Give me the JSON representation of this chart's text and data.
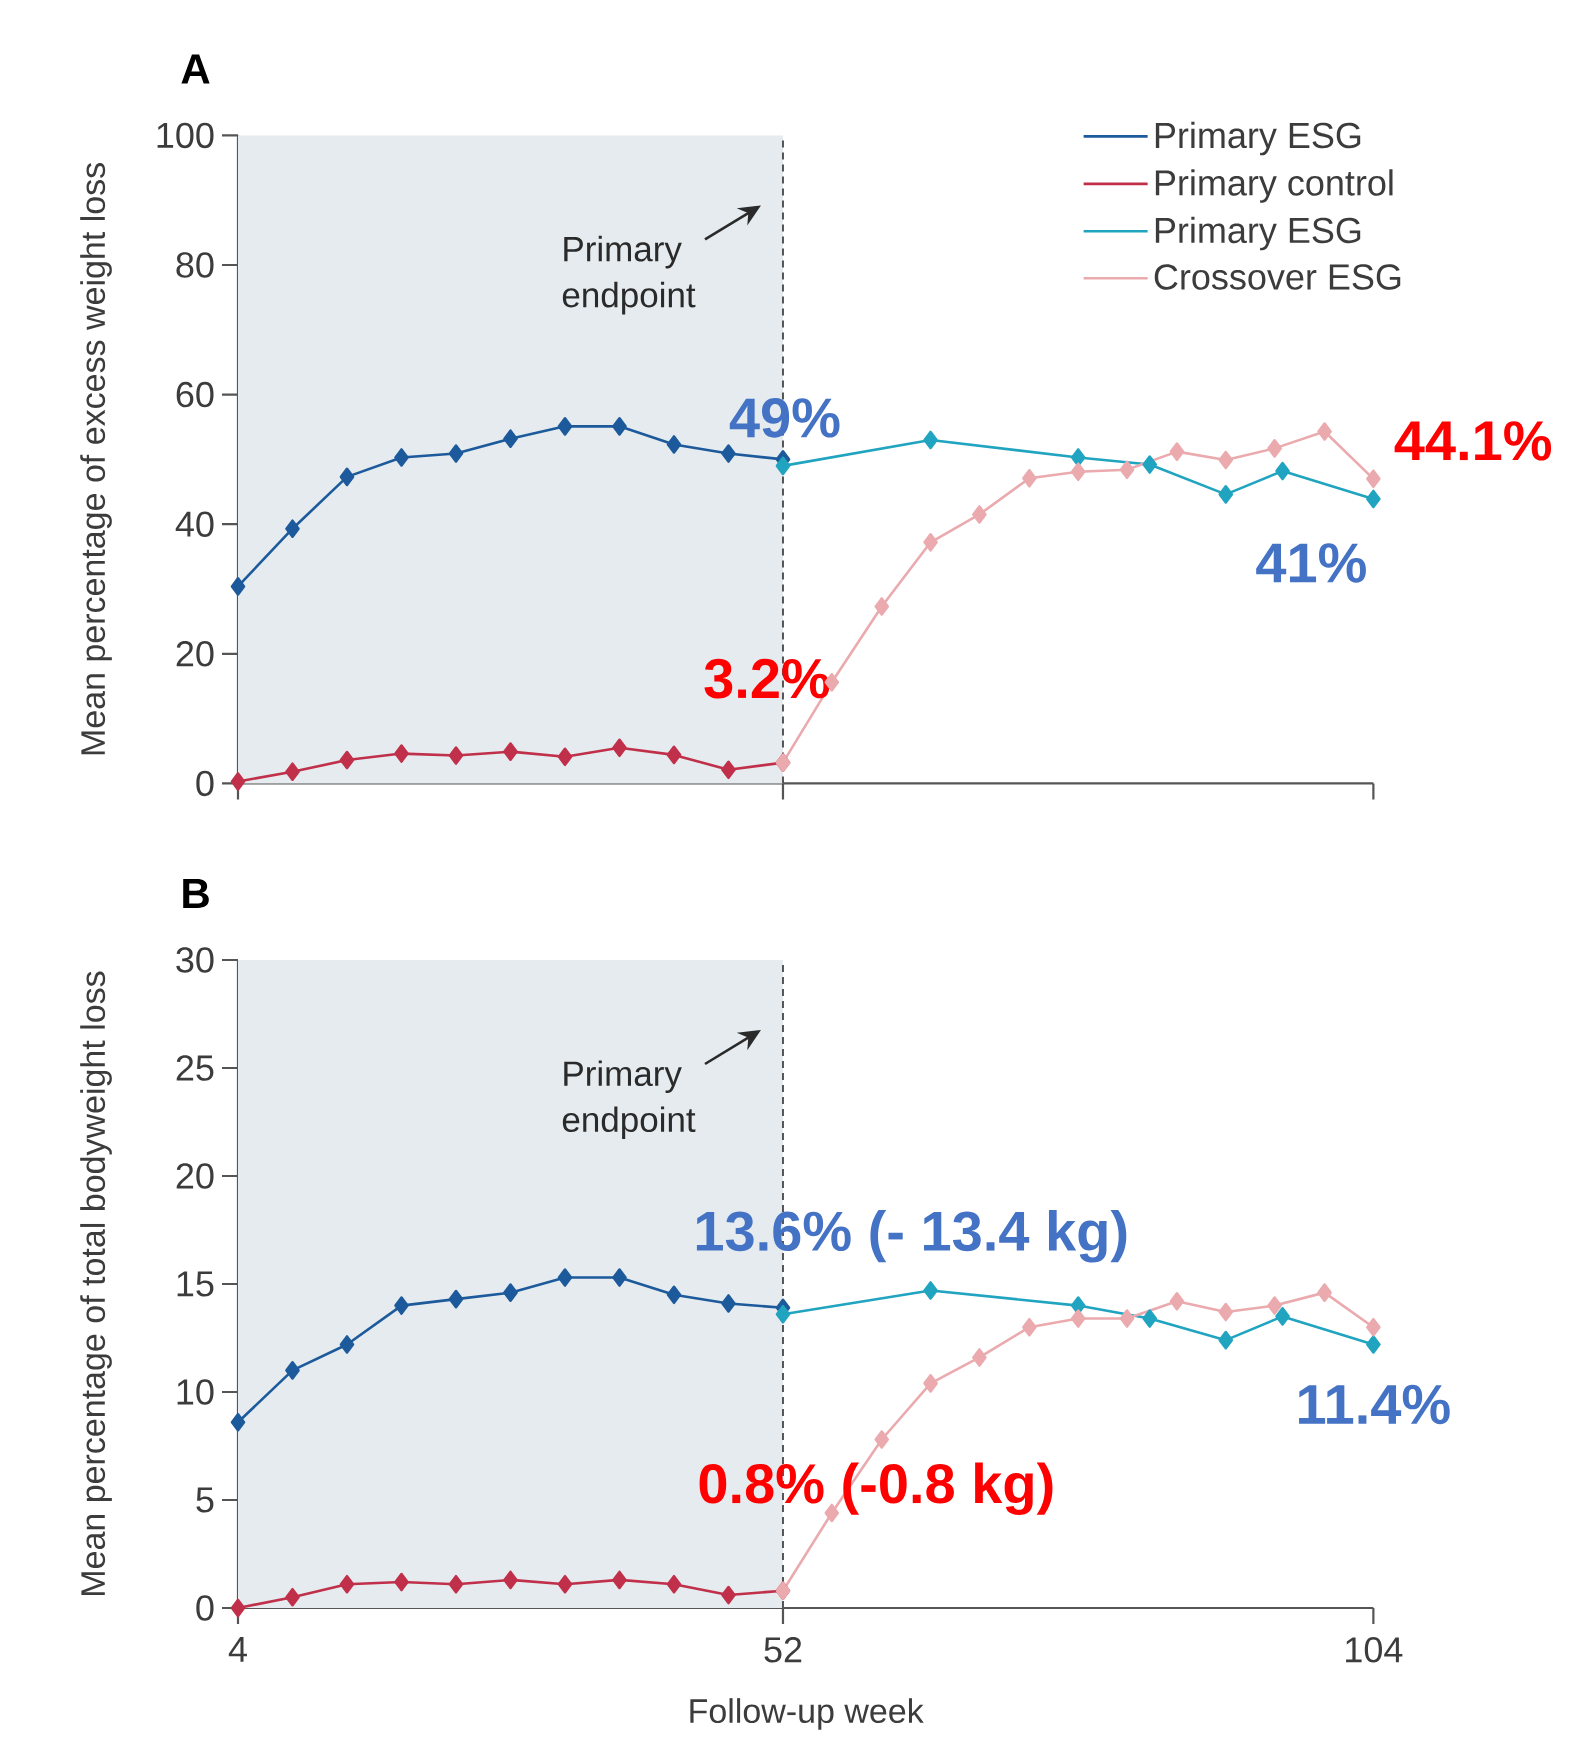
{
  "chart_data": [
    {
      "type": "line",
      "title": "A",
      "ylabel": "Mean percentage of excess weight loss",
      "xlim": [
        4,
        104
      ],
      "xticks": [
        4,
        52,
        104
      ],
      "ylim": [
        0,
        100
      ],
      "yticks": [
        0,
        20,
        40,
        60,
        80,
        100
      ],
      "tick_labels": "y",
      "marker": "diamond",
      "line_style": "solid",
      "legend": "top right",
      "bands": [
        {
          "axis": "x",
          "from": 4,
          "to": 52,
          "color": "#e5ebee"
        }
      ],
      "ref_lines": [
        {
          "axis": "x",
          "value": 52,
          "color": "#555555",
          "line_style": "dashed"
        }
      ],
      "annotations": [
        "Primary endpoint",
        "49%",
        "3.2%",
        "41%",
        "44.1%"
      ],
      "series": [
        {
          "name": "Primary ESG",
          "color": "#1c5a9c",
          "x": [
            4,
            8.8,
            13.6,
            18.4,
            23.2,
            28,
            32.8,
            37.6,
            42.4,
            47.2,
            52
          ],
          "values": [
            30.4,
            39.3,
            47.3,
            50.3,
            50.9,
            53.2,
            55.1,
            55.1,
            52.3,
            50.9,
            50.0
          ]
        },
        {
          "name": "Primary control",
          "color": "#c0304a",
          "x": [
            4,
            8.8,
            13.6,
            18.4,
            23.2,
            28,
            32.8,
            37.6,
            42.4,
            47.2,
            52
          ],
          "values": [
            0.3,
            1.8,
            3.6,
            4.6,
            4.3,
            4.9,
            4.1,
            5.5,
            4.4,
            2.1,
            3.2
          ]
        },
        {
          "name": "Primary ESG",
          "color": "#20a4c0",
          "x": [
            52,
            65,
            78,
            84.3,
            91,
            96,
            104
          ],
          "values": [
            49,
            53.0,
            50.3,
            49.2,
            44.6,
            48.2,
            43.9
          ]
        },
        {
          "name": "Crossover ESG",
          "color": "#eaaaae",
          "x": [
            52,
            56.3,
            60.7,
            65,
            69.3,
            73.7,
            78,
            82.3,
            86.7,
            91,
            95.3,
            99.7,
            104
          ],
          "values": [
            3.2,
            15.6,
            27.3,
            37.2,
            41.5,
            47.1,
            48.1,
            48.4,
            51.2,
            49.9,
            51.7,
            54.3,
            47.0
          ]
        }
      ]
    },
    {
      "type": "line",
      "title": "B",
      "xlabel": "Follow-up week",
      "ylabel": "Mean percentage of total bodyweight loss",
      "xlim": [
        4,
        104
      ],
      "xticks": [
        4,
        52,
        104
      ],
      "ylim": [
        0,
        30
      ],
      "yticks": [
        0,
        5,
        10,
        15,
        20,
        25,
        30
      ],
      "marker": "diamond",
      "line_style": "solid",
      "bands": [
        {
          "axis": "x",
          "from": 4,
          "to": 52,
          "color": "#e5ebee"
        }
      ],
      "ref_lines": [
        {
          "axis": "x",
          "value": 52,
          "color": "#555555",
          "line_style": "dashed"
        }
      ],
      "annotations": [
        "Primary endpoint",
        "13.6% (- 13.4 kg)",
        "0.8% (-0.8 kg)",
        "11.4%"
      ],
      "series": [
        {
          "color": "#1c5a9c",
          "x": [
            4,
            8.8,
            13.6,
            18.4,
            23.2,
            28,
            32.8,
            37.6,
            42.4,
            47.2,
            52
          ],
          "values": [
            8.6,
            11.0,
            12.2,
            14.0,
            14.3,
            14.6,
            15.3,
            15.3,
            14.5,
            14.1,
            13.9
          ]
        },
        {
          "color": "#c0304a",
          "x": [
            4,
            8.8,
            13.6,
            18.4,
            23.2,
            28,
            32.8,
            37.6,
            42.4,
            47.2,
            52
          ],
          "values": [
            0.0,
            0.5,
            1.1,
            1.2,
            1.1,
            1.3,
            1.1,
            1.3,
            1.1,
            0.6,
            0.8
          ]
        },
        {
          "color": "#20a4c0",
          "x": [
            52,
            65,
            78,
            84.3,
            91,
            96,
            104
          ],
          "values": [
            13.6,
            14.7,
            14.0,
            13.4,
            12.4,
            13.5,
            12.2
          ]
        },
        {
          "color": "#eaaaae",
          "x": [
            52,
            56.3,
            60.7,
            65,
            69.3,
            73.7,
            78,
            82.3,
            86.7,
            91,
            95.3,
            99.7,
            104
          ],
          "values": [
            0.8,
            4.4,
            7.8,
            10.4,
            11.6,
            13.0,
            13.4,
            13.4,
            14.2,
            13.7,
            14.0,
            14.6,
            13.0
          ]
        }
      ]
    }
  ]
}
